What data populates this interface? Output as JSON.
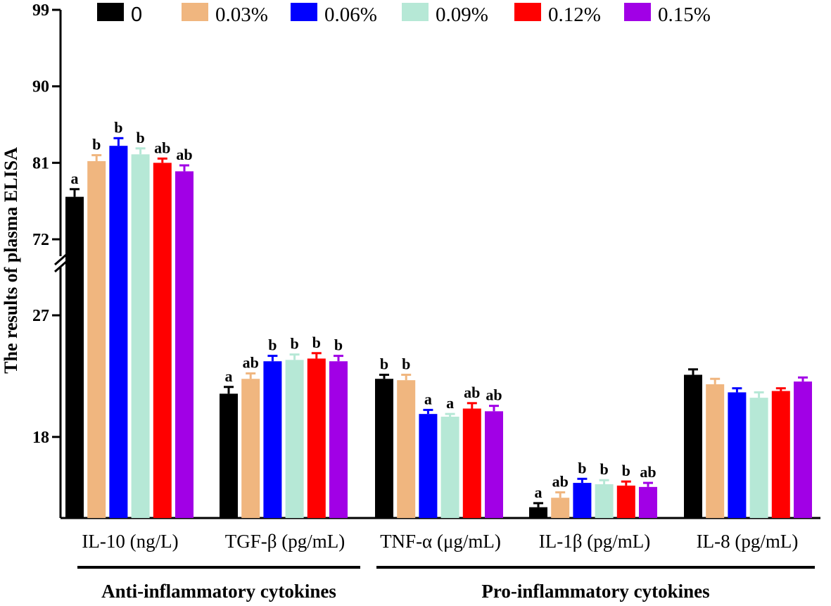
{
  "chart_data": {
    "type": "bar",
    "title": "",
    "xlabel": "",
    "ylabel": "The results of plasma ELISA",
    "y_axis_break": {
      "lower_range": [
        12,
        27
      ],
      "upper_range": [
        72,
        99
      ]
    },
    "yticks": [
      18,
      27,
      72,
      81,
      90,
      99
    ],
    "categories": [
      "IL-10 (ng/L)",
      "TGF-β (pg/mL)",
      "TNF-α (μg/mL)",
      "IL-1β (pg/mL)",
      "IL-8 (pg/mL)"
    ],
    "category_groups": [
      {
        "label": "Anti-inflammatory cytokines",
        "categories": [
          "IL-10 (ng/L)",
          "TGF-β (pg/mL)"
        ]
      },
      {
        "label": "Pro-inflammatory cytokines",
        "categories": [
          "TNF-α (μg/mL)",
          "IL-1β (pg/mL)",
          "IL-8 (pg/mL)"
        ]
      }
    ],
    "legend_position": "top",
    "series": [
      {
        "name": "0",
        "color": "#000000",
        "values": [
          77.0,
          21.2,
          22.3,
          12.8,
          22.6
        ],
        "errors": [
          0.9,
          0.5,
          0.3,
          0.3,
          0.4
        ],
        "labels": [
          "a",
          "a",
          "b",
          "a",
          ""
        ]
      },
      {
        "name": "0.03%",
        "color": "#F0B67F",
        "values": [
          81.2,
          22.3,
          22.2,
          13.5,
          21.9
        ],
        "errors": [
          0.7,
          0.4,
          0.4,
          0.4,
          0.4
        ],
        "labels": [
          "b",
          "ab",
          "b",
          "ab",
          ""
        ]
      },
      {
        "name": "0.06%",
        "color": "#0000FF",
        "values": [
          83.0,
          23.6,
          19.7,
          14.6,
          21.3
        ],
        "errors": [
          0.9,
          0.4,
          0.3,
          0.3,
          0.3
        ],
        "labels": [
          "b",
          "b",
          "a",
          "b",
          ""
        ]
      },
      {
        "name": "0.09%",
        "color": "#B6E8D6",
        "values": [
          82.0,
          23.7,
          19.5,
          14.5,
          20.9
        ],
        "errors": [
          0.7,
          0.4,
          0.2,
          0.3,
          0.4
        ],
        "labels": [
          "b",
          "b",
          "a",
          "b",
          ""
        ]
      },
      {
        "name": "0.12%",
        "color": "#FF0000",
        "values": [
          81.0,
          23.8,
          20.1,
          14.4,
          21.4
        ],
        "errors": [
          0.5,
          0.4,
          0.4,
          0.3,
          0.2
        ],
        "labels": [
          "ab",
          "b",
          "ab",
          "b",
          ""
        ]
      },
      {
        "name": "0.15%",
        "color": "#A100E6",
        "values": [
          80.0,
          23.6,
          19.9,
          14.3,
          22.1
        ],
        "errors": [
          0.7,
          0.4,
          0.4,
          0.3,
          0.3
        ],
        "labels": [
          "ab",
          "b",
          "ab",
          "ab",
          ""
        ]
      }
    ]
  }
}
